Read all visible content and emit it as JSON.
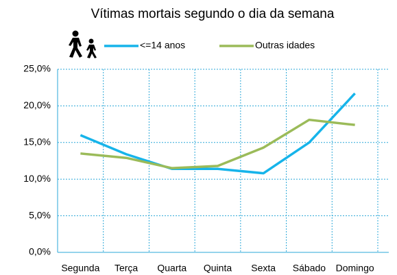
{
  "chart_data": {
    "type": "line",
    "title": "Vítimas mortais segundo o dia da semana",
    "categories": [
      "Segunda",
      "Terça",
      "Quarta",
      "Quinta",
      "Sexta",
      "Sábado",
      "Domingo"
    ],
    "series": [
      {
        "name": "<=14 anos",
        "color": "#16b4ea",
        "values": [
          16.0,
          13.4,
          11.4,
          11.4,
          10.8,
          15.0,
          21.7
        ]
      },
      {
        "name": "Outras idades",
        "color": "#9bbb59",
        "values": [
          13.5,
          12.9,
          11.5,
          11.8,
          14.3,
          18.1,
          17.4
        ]
      }
    ],
    "ylim": [
      0,
      25
    ],
    "yticks": [
      {
        "value": 0,
        "label": "0,0%"
      },
      {
        "value": 5,
        "label": "5,0%"
      },
      {
        "value": 10,
        "label": "10,0%"
      },
      {
        "value": 15,
        "label": "15,0%"
      },
      {
        "value": 20,
        "label": "20,0%"
      },
      {
        "value": 25,
        "label": "25,0%"
      }
    ],
    "grid": true
  }
}
